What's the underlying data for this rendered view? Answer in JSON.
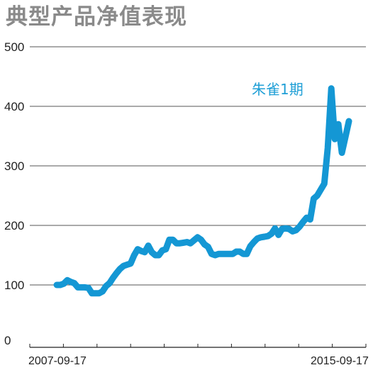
{
  "chart_data": {
    "type": "line",
    "title": "典型产品净值表现",
    "series_label": "朱雀1期",
    "line_color": "#1497d4",
    "ylim": [
      0,
      500
    ],
    "yticks": [
      0,
      100,
      200,
      300,
      400,
      500
    ],
    "x_tick_labels": [
      "2007-09-17",
      "2015-09-17"
    ],
    "grid": "horizontal",
    "series": [
      {
        "name": "朱雀1期",
        "values": [
          100,
          100,
          102,
          108,
          105,
          103,
          96,
          96,
          96,
          95,
          86,
          86,
          86,
          89,
          98,
          103,
          112,
          120,
          127,
          132,
          134,
          136,
          150,
          160,
          157,
          155,
          166,
          155,
          150,
          150,
          158,
          160,
          176,
          176,
          170,
          170,
          171,
          172,
          170,
          175,
          180,
          176,
          168,
          164,
          152,
          150,
          152,
          152,
          152,
          152,
          152,
          156,
          156,
          152,
          152,
          165,
          172,
          178,
          180,
          181,
          182,
          186,
          195,
          184,
          194,
          195,
          194,
          190,
          192,
          198,
          206,
          213,
          210,
          245,
          250,
          260,
          270,
          330,
          430,
          345,
          370,
          322,
          348,
          375
        ],
        "values_note": ""
      }
    ]
  }
}
